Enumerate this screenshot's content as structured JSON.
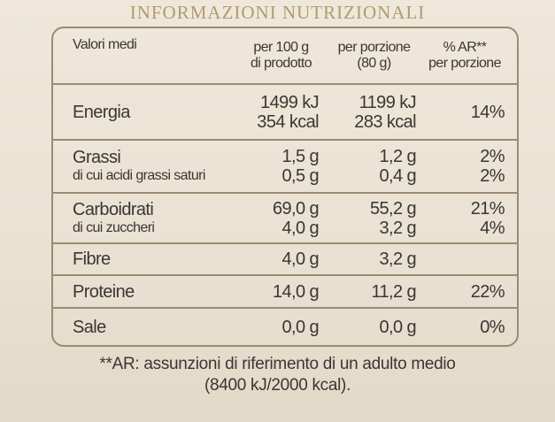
{
  "header": {
    "title": "INFORMAZIONI NUTRIZIONALI"
  },
  "table": {
    "columns": [
      [
        "Valori medi"
      ],
      [
        "per 100 g",
        "di prodotto"
      ],
      [
        "per porzione",
        "(80 g)"
      ],
      [
        "% AR**",
        "per porzione"
      ]
    ],
    "rows": [
      [
        [
          "Energia"
        ],
        [
          "1499 kJ",
          "354 kcal"
        ],
        [
          "1199 kJ",
          "283 kcal"
        ],
        [
          "14%"
        ]
      ],
      [
        [
          "Grassi",
          "di cui acidi grassi saturi"
        ],
        [
          "1,5 g",
          "0,5 g"
        ],
        [
          "1,2 g",
          "0,4 g"
        ],
        [
          "2%",
          "2%"
        ]
      ],
      [
        [
          "Carboidrati",
          "di cui zuccheri"
        ],
        [
          "69,0 g",
          "4,0 g"
        ],
        [
          "55,2 g",
          "3,2 g"
        ],
        [
          "21%",
          "4%"
        ]
      ],
      [
        [
          "Fibre"
        ],
        [
          "4,0 g"
        ],
        [
          "3,2 g"
        ],
        []
      ],
      [
        [
          "Proteine"
        ],
        [
          "14,0 g"
        ],
        [
          "11,2 g"
        ],
        [
          "22%"
        ]
      ],
      [
        [
          "Sale"
        ],
        [
          "0,0 g"
        ],
        [
          "0,0 g"
        ],
        [
          "0%"
        ]
      ]
    ]
  },
  "footnote": [
    "**AR: assunzioni di riferimento di un adulto medio",
    "(8400 kJ/2000 kcal)."
  ]
}
